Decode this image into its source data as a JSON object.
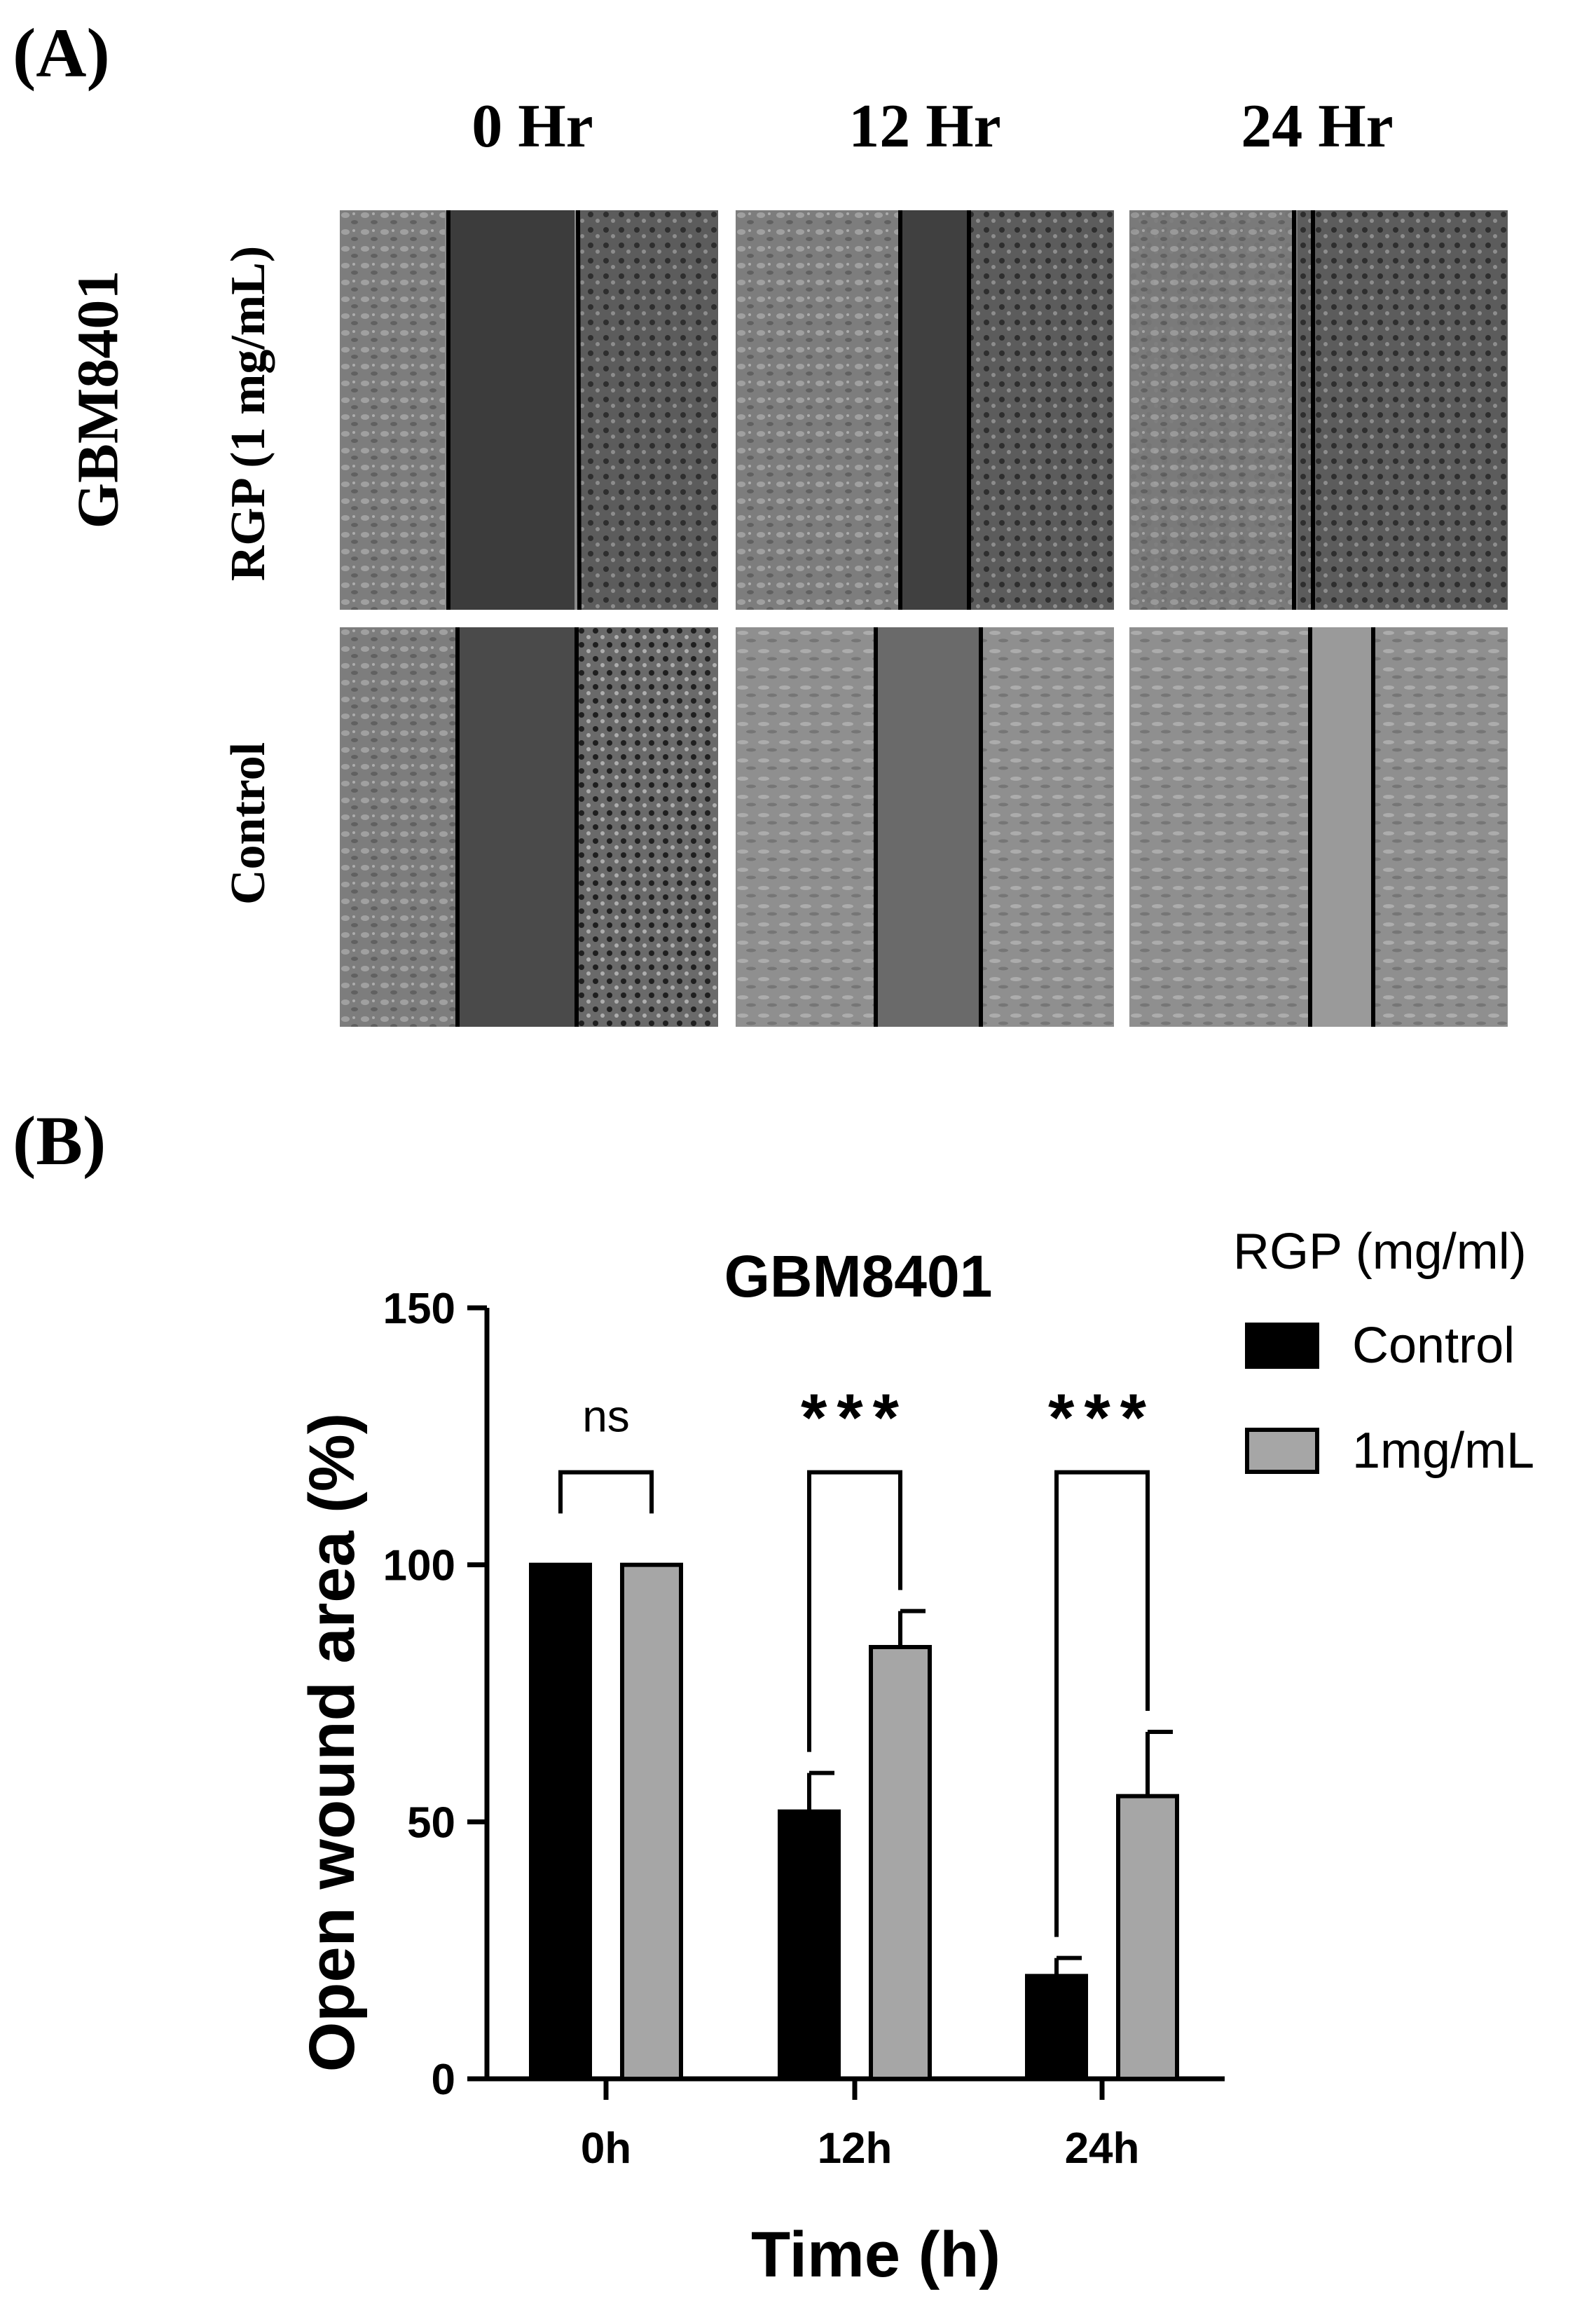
{
  "panel_a": {
    "label": "(A)",
    "columns": [
      "0 Hr",
      "12 Hr",
      "24 Hr"
    ],
    "cell_line": "GBM8401",
    "rows": [
      "RGP (1 mg/mL)",
      "Control"
    ]
  },
  "panel_b": {
    "label": "(B)"
  },
  "colors": {
    "control": "#000000",
    "rgp": "#a6a6a6",
    "tile_dark": "#3a3a3a",
    "tile_light": "#8e8e8e"
  },
  "chart_data": {
    "type": "bar",
    "title": "GBM8401",
    "xlabel": "Time (h)",
    "ylabel": "Open wound area (%)",
    "categories": [
      "0h",
      "12h",
      "24h"
    ],
    "ylim": [
      0,
      150
    ],
    "yticks": [
      0,
      50,
      100,
      150
    ],
    "legend": {
      "title": "RGP (mg/ml)",
      "placement": "top-right"
    },
    "series": [
      {
        "name": "Control",
        "color": "#000000",
        "values": [
          100,
          52,
          20
        ],
        "errors": [
          0,
          7.5,
          3.5
        ]
      },
      {
        "name": "1mg/mL",
        "color": "#a6a6a6",
        "values": [
          100,
          84,
          55
        ],
        "errors": [
          0,
          7,
          12.5
        ]
      }
    ],
    "significance": [
      "ns",
      "***",
      "***"
    ],
    "grid": false
  }
}
